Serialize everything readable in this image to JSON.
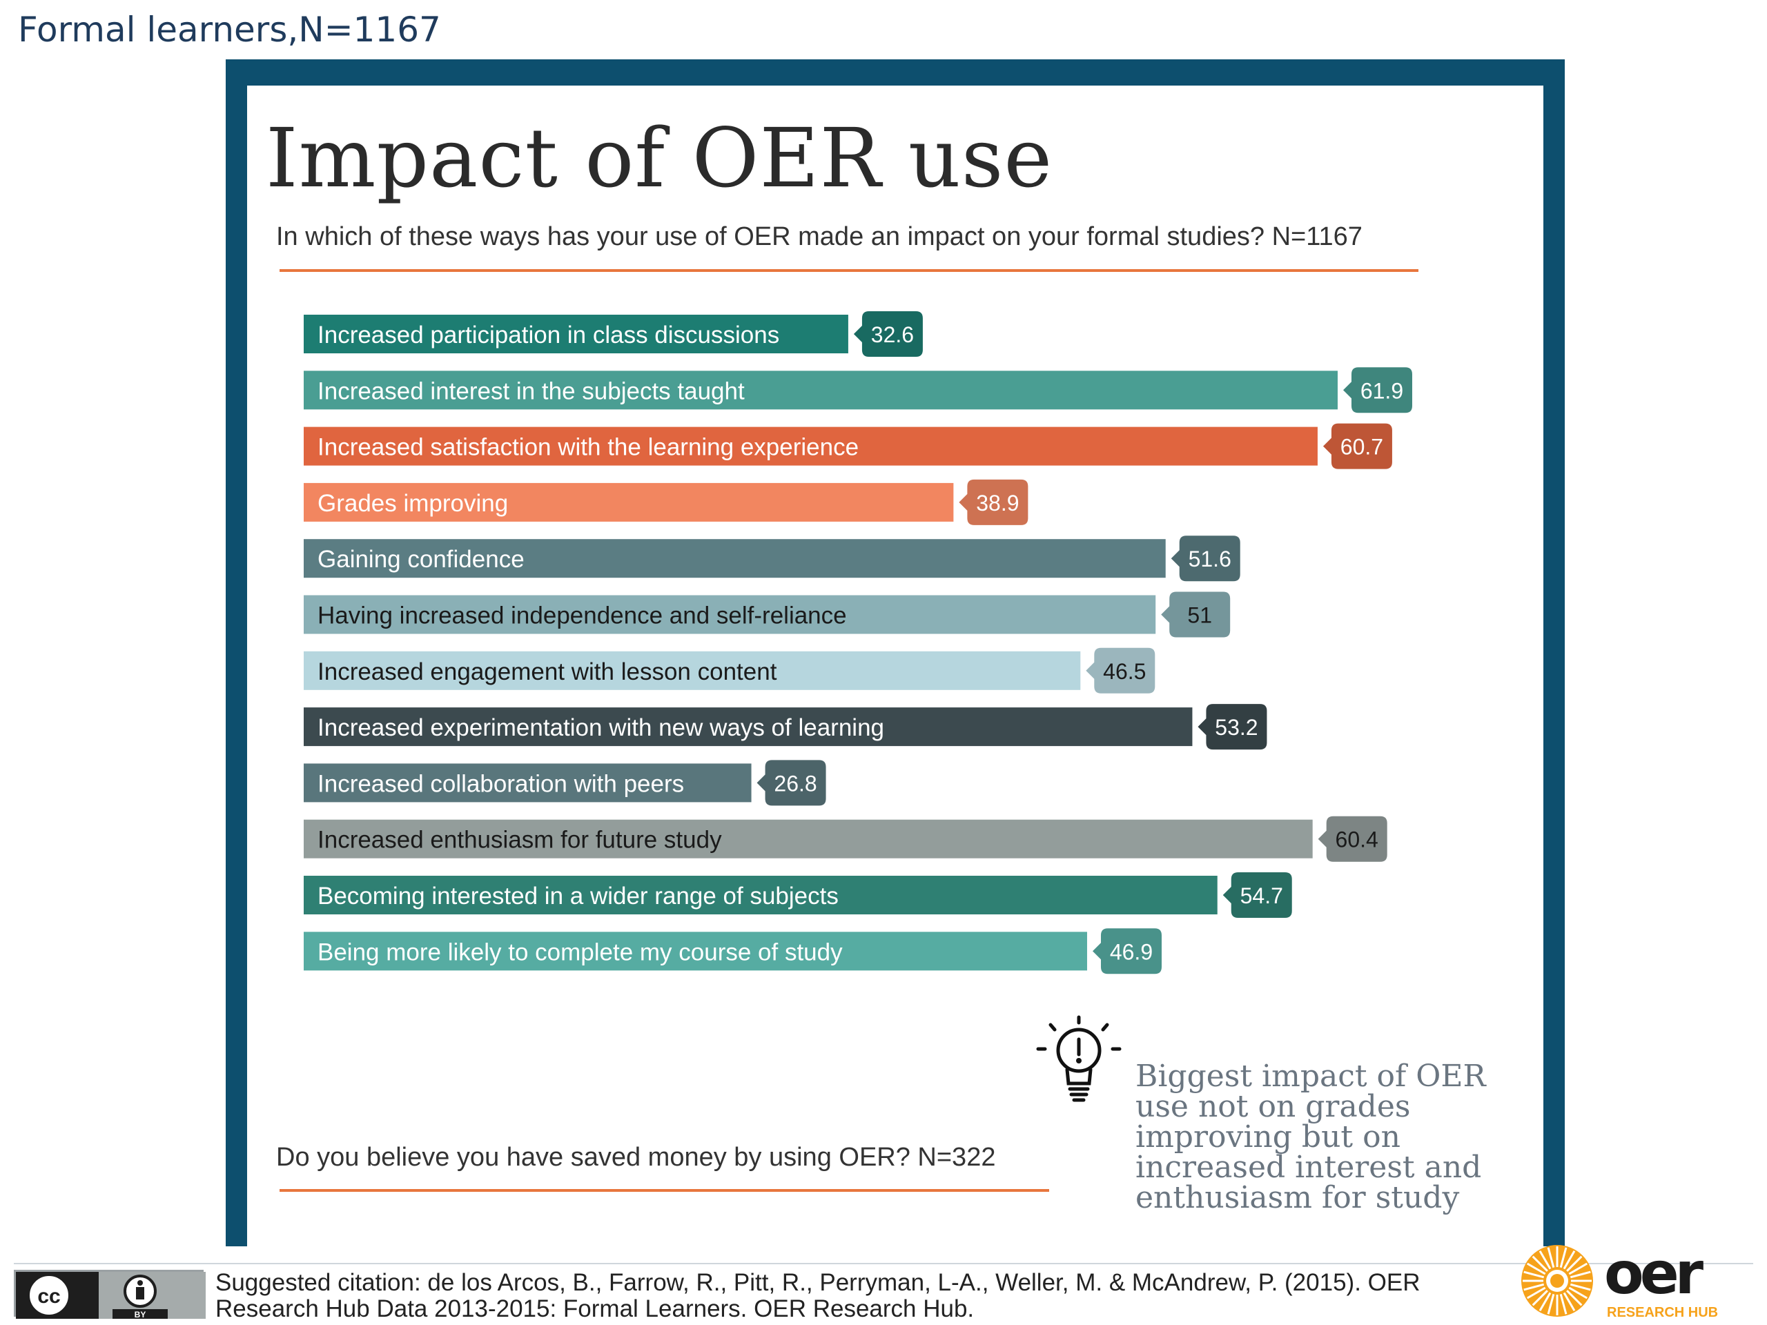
{
  "slide_title": "Formal learners,N=1167",
  "chart_data": {
    "type": "bar",
    "orientation": "horizontal",
    "title": "Impact of OER use",
    "question": "In which of these ways has your use of OER made an impact on your formal studies? N=1167",
    "categories": [
      "Increased participation in class discussions",
      "Increased interest in the subjects taught",
      "Increased satisfaction with the learning experience",
      "Grades improving",
      "Gaining confidence",
      "Having increased independence and self-reliance",
      "Increased engagement with lesson content",
      "Increased experimentation with new ways of learning",
      "Increased collaboration with peers",
      "Increased enthusiasm for future study",
      "Becoming interested in a wider range of subjects",
      "Being more likely to complete my course of study"
    ],
    "values": [
      32.6,
      61.9,
      60.7,
      38.9,
      51.6,
      51,
      46.5,
      53.2,
      26.8,
      60.4,
      54.7,
      46.9
    ],
    "value_labels": [
      "32.6",
      "61.9",
      "60.7",
      "38.9",
      "51.6",
      "51",
      "46.5",
      "53.2",
      "26.8",
      "60.4",
      "54.7",
      "46.9"
    ],
    "bar_colors": [
      "#1d7d72",
      "#4a9e93",
      "#e0653f",
      "#f28660",
      "#5b7d83",
      "#8ab0b6",
      "#b6d6de",
      "#3c4a4f",
      "#59767c",
      "#939d9b",
      "#2f8073",
      "#56aca2"
    ],
    "label_colors": [
      "#ffffff",
      "#ffffff",
      "#ffffff",
      "#ffffff",
      "#ffffff",
      "#1a1a1a",
      "#1a1a1a",
      "#ffffff",
      "#ffffff",
      "#1a1a1a",
      "#ffffff",
      "#ffffff"
    ],
    "xlim": [
      0,
      70
    ]
  },
  "insight": "Biggest impact of OER use not on grades improving but on increased interest and enthusiasm for study",
  "question2": "Do you believe you have saved money by using OER? N=322",
  "license": {
    "cc": "cc",
    "by": "BY"
  },
  "citation": "Suggested citation: de los Arcos, B., Farrow, R., Pitt, R., Perryman, L-A., Weller, M. & McAndrew, P. (2015). OER Research Hub Data 2013-2015: Formal Learners. OER Research Hub.",
  "logo": {
    "word": "oer",
    "sub": "RESEARCH HUB"
  },
  "colors": {
    "frame": "#0d4f6e",
    "accent": "#e8763d"
  }
}
